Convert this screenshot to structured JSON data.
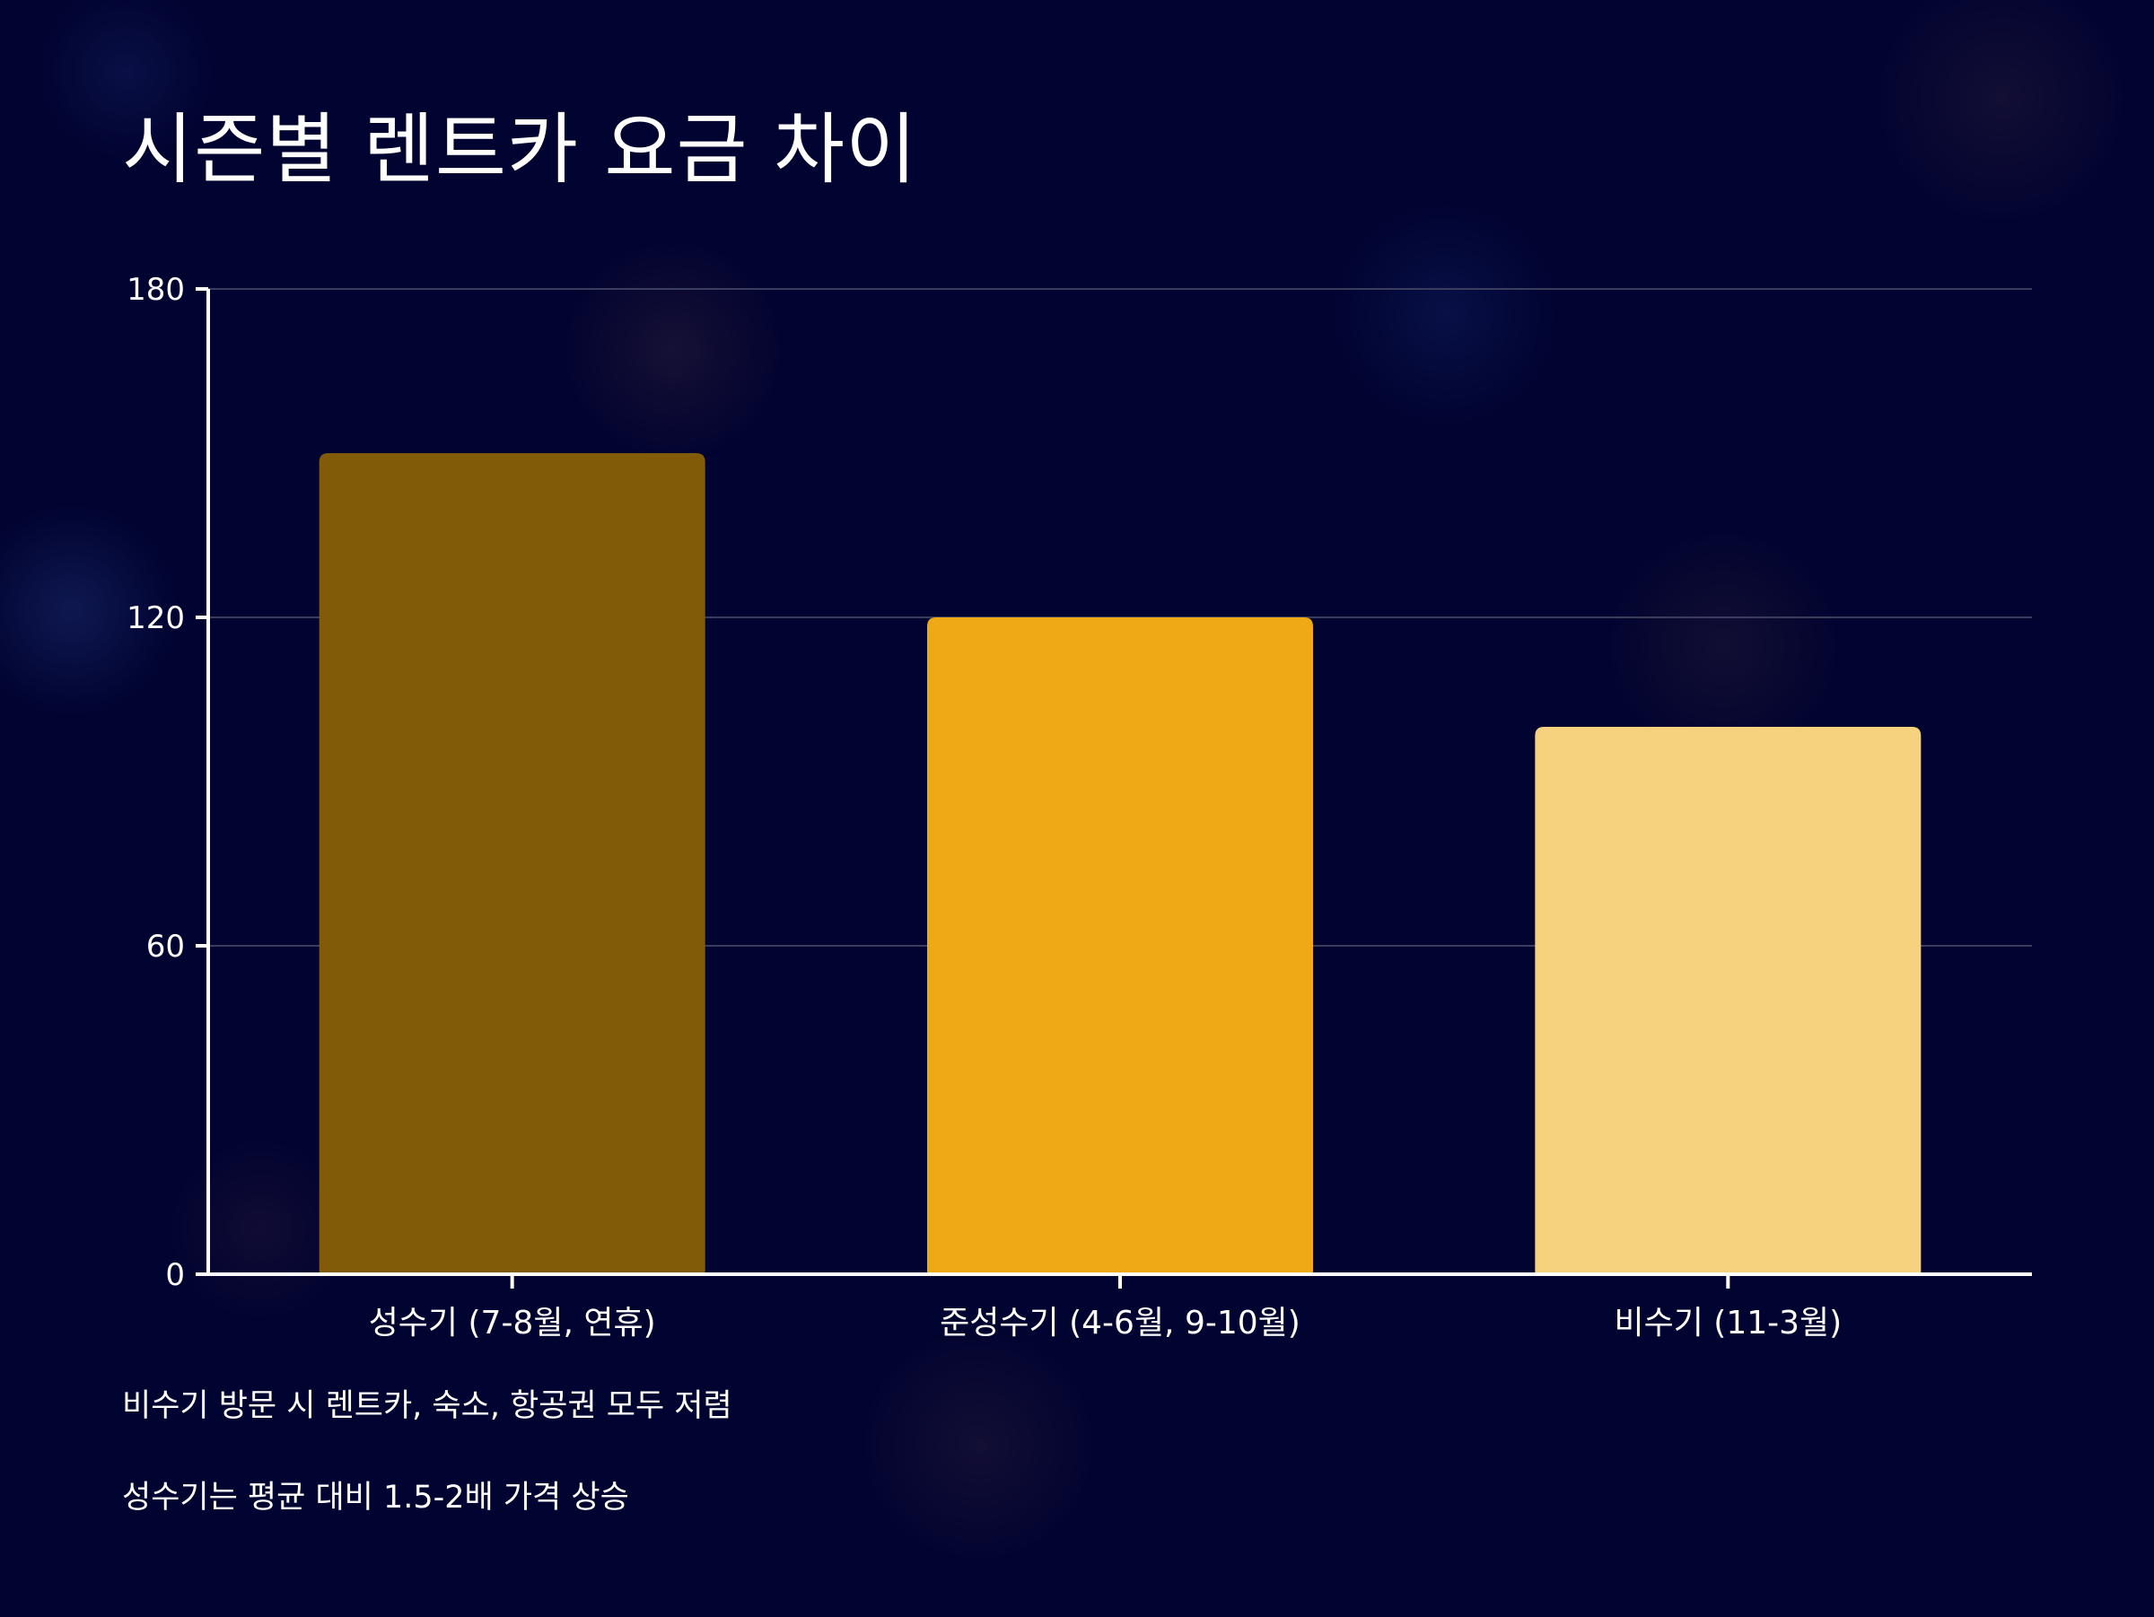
{
  "chart_data": {
    "type": "bar",
    "title": "시즌별 렌트카 요금 차이",
    "xlabel": "",
    "ylabel": "",
    "categories": [
      "성수기 (7-8월, 연휴)",
      "준성수기 (4-6월, 9-10월)",
      "비수기 (11-3월)"
    ],
    "values": [
      150,
      120,
      100
    ],
    "bar_colors": [
      "#825B08",
      "#EEA914",
      "#F6D17E"
    ],
    "ylim": [
      0,
      180
    ],
    "yticks": [
      "0",
      "60",
      "120",
      "180"
    ],
    "grid": true
  },
  "notes": [
    "비수기 방문 시 렌트카, 숙소, 항공권 모두 저렴",
    "성수기는 평균 대비 1.5-2배 가격 상승"
  ],
  "colors": {
    "background": "#010330",
    "axis": "#ffffff",
    "grid": "#3a3d5c"
  }
}
